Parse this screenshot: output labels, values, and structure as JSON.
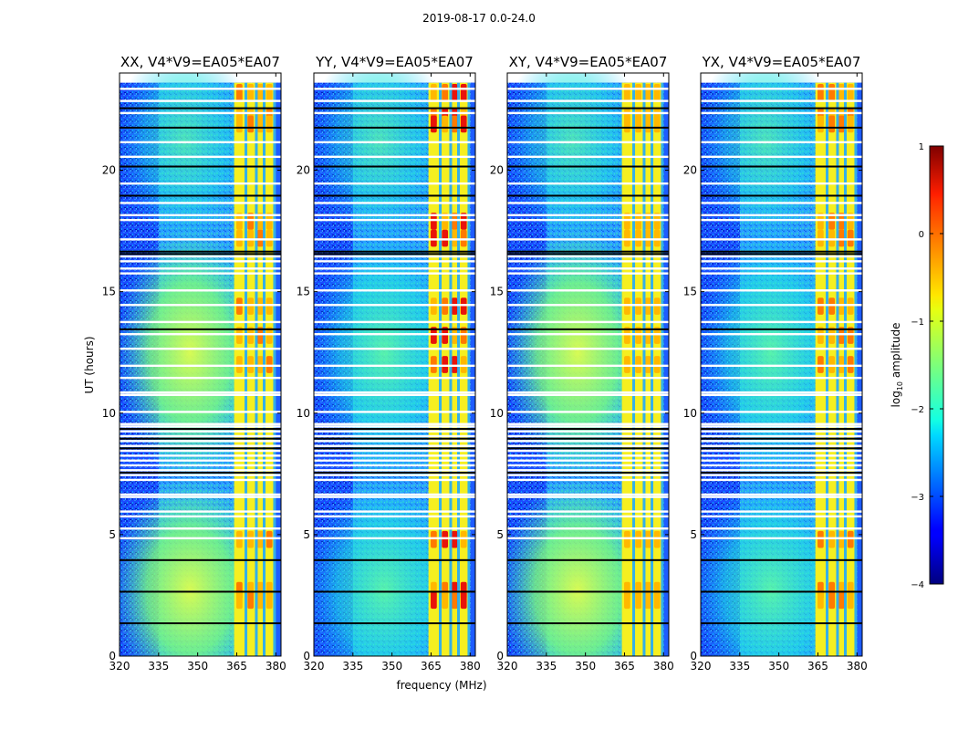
{
  "chart_data": {
    "type": "heatmap",
    "title": "2019-08-17 0.0-24.0",
    "xlabel": "frequency (MHz)",
    "ylabel": "UT (hours)",
    "xlim": [
      320,
      382
    ],
    "ylim": [
      0,
      24
    ],
    "x_ticks": [
      320,
      335,
      350,
      365,
      380
    ],
    "y_ticks": [
      0,
      5,
      10,
      15,
      20
    ],
    "panels": [
      {
        "title": "XX, V4*V9=EA05*EA07",
        "bright_blob": true,
        "red_rfi_level": 0.6
      },
      {
        "title": "YY, V4*V9=EA05*EA07",
        "bright_blob": false,
        "red_rfi_level": 1.0
      },
      {
        "title": "XY, V4*V9=EA05*EA07",
        "bright_blob": true,
        "red_rfi_level": 0.5
      },
      {
        "title": "YX, V4*V9=EA05*EA07",
        "bright_blob": false,
        "red_rfi_level": 0.75
      }
    ],
    "colorbar": {
      "label": "log10 amplitude",
      "label_main": "log",
      "label_sub": "10",
      "label_rest": " amplitude",
      "range": [
        -4,
        1
      ],
      "ticks": [
        -4,
        -3,
        -2,
        -1,
        0,
        1
      ],
      "tick_labels": [
        "−4",
        "−3",
        "−2",
        "−1",
        "0",
        "1"
      ],
      "colormap": "jet"
    },
    "features": {
      "rfi_band_mhz": [
        364,
        380
      ],
      "rfi_channel_lines_mhz": [
        368,
        372,
        375,
        379
      ],
      "edge_cut_mhz": [
        320,
        322
      ],
      "blank_rows_ut": [
        23.35,
        22.85,
        22.35,
        21.15,
        20.55,
        19.45,
        18.65,
        18.15,
        17.95,
        17.15,
        16.45,
        16.25,
        15.95,
        15.75,
        15.05,
        14.45,
        13.75,
        13.25,
        12.65,
        11.95,
        11.45,
        10.85,
        10.75,
        10.05,
        9.55,
        9.45,
        9.25,
        9.05,
        8.85,
        8.65,
        8.45,
        8.25,
        8.05,
        7.85,
        7.65,
        7.45,
        7.25,
        6.65,
        6.55,
        5.95,
        5.75,
        5.25,
        4.85
      ],
      "flag_rows_ut": [
        22.55,
        21.75,
        20.15,
        18.95,
        16.65,
        16.55,
        13.45,
        9.35,
        8.95,
        8.55,
        7.55,
        3.95,
        2.65,
        1.35
      ]
    }
  }
}
